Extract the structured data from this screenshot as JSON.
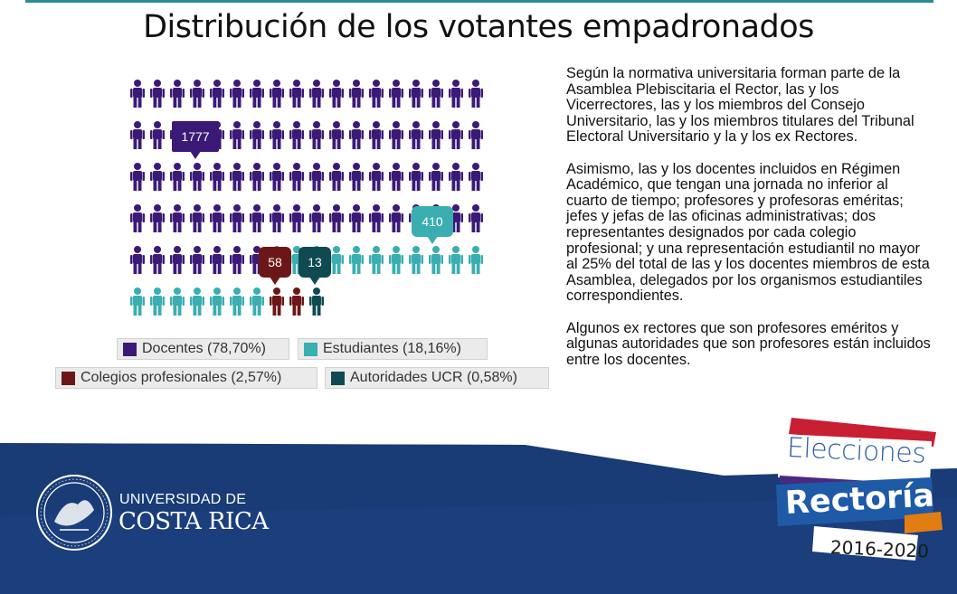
{
  "title": "Distribución de los votantes empadronados",
  "chart": {
    "rows": [
      [
        "D",
        "D",
        "D",
        "D",
        "D",
        "D",
        "D",
        "D",
        "D",
        "D",
        "D",
        "D",
        "D",
        "D",
        "D",
        "D",
        "D",
        "D"
      ],
      [
        "D",
        "D",
        "D",
        "D",
        "D",
        "D",
        "D",
        "D",
        "D",
        "D",
        "D",
        "D",
        "D",
        "D",
        "D",
        "D",
        "D",
        "D"
      ],
      [
        "D",
        "D",
        "D",
        "D",
        "D",
        "D",
        "D",
        "D",
        "D",
        "D",
        "D",
        "D",
        "D",
        "D",
        "D",
        "D",
        "D",
        "D"
      ],
      [
        "D",
        "D",
        "D",
        "D",
        "D",
        "D",
        "D",
        "D",
        "D",
        "D",
        "D",
        "D",
        "D",
        "D",
        "D",
        "D",
        "D",
        "D"
      ],
      [
        "D",
        "D",
        "D",
        "D",
        "D",
        "D",
        "D",
        "S",
        "S",
        "S",
        "S",
        "S",
        "S",
        "S",
        "S",
        "S",
        "S",
        "S"
      ],
      [
        "S",
        "S",
        "S",
        "S",
        "S",
        "S",
        "S",
        "C",
        "C",
        "A"
      ]
    ],
    "groups": {
      "D": {
        "color": "#3b1a77",
        "label": "Docentes (78,70%)",
        "value": "1777"
      },
      "S": {
        "color": "#3aaeb0",
        "label": "Estudiantes (18,16%)",
        "value": "410"
      },
      "C": {
        "color": "#6c1717",
        "label": "Colegios profesionales (2,57%)",
        "value": "58"
      },
      "A": {
        "color": "#0f4a52",
        "label": "Autoridades UCR (0,58%)",
        "value": "13"
      }
    }
  },
  "text": {
    "p1": "Según la normativa universitaria forman parte de la Asamblea Plebiscitaria el Rector, las y los Vicerrectores, las y los miembros del Consejo Universitario, las y los miembros titulares del Tribunal Electoral Universitario y la y los ex Rectores.",
    "p2": "Asimismo, las y los docentes incluidos en Régimen Académico, que tengan una jornada no inferior al cuarto de tiempo; profesores y profesoras eméritas; jefes y jefas de las oficinas administrativas; dos representantes designados por cada colegio profesional; y una representación estudiantil no mayor al 25%  del total de las y los docentes miembros de esta Asamblea, delegados por los organismos estudiantiles correspondientes.",
    "p3": "Algunos ex rectores que son profesores eméritos y algunas autoridades que son profesores están incluidos entre los docentes."
  },
  "footer": {
    "university_line1": "UNIVERSIDAD DE",
    "university_line2": "COSTA RICA",
    "election_line1": "Elecciones",
    "election_line2": "Rectoría",
    "election_years": "2016-2020"
  }
}
